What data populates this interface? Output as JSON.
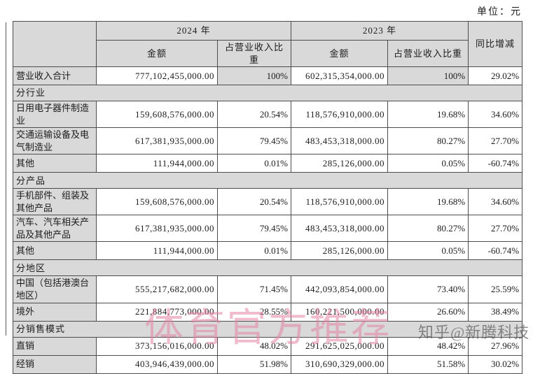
{
  "page": {
    "unit_label": "单位：元"
  },
  "watermarks": {
    "center": "体育官方推荐",
    "corner": "知乎@新腾科技"
  },
  "colors": {
    "cell_shade": "#d9d9d9",
    "border": "#4d4d4d",
    "watermark_pink": "#e284a4",
    "watermark_gray": "#4b4b4b"
  },
  "table": {
    "header": {
      "year_2024": "2024 年",
      "year_2023": "2023 年",
      "amount": "金额",
      "pct_of_revenue": "占营业收入比重",
      "yoy_change": "同比增减"
    },
    "rows": [
      {
        "type": "data",
        "label": "营业收入合计",
        "a24": "777,102,455,000.00",
        "p24": "100%",
        "a23": "602,315,354,000.00",
        "p23": "100%",
        "yoy": "29.02%",
        "shaded_pct": true
      },
      {
        "type": "section",
        "label": "分行业"
      },
      {
        "type": "data",
        "label": "日用电子器件制造业",
        "a24": "159,608,576,000.00",
        "p24": "20.54%",
        "a23": "118,576,910,000.00",
        "p23": "19.68%",
        "yoy": "34.60%"
      },
      {
        "type": "data",
        "label": "交通运输设备及电气制造业",
        "a24": "617,381,935,000.00",
        "p24": "79.45%",
        "a23": "483,453,318,000.00",
        "p23": "80.27%",
        "yoy": "27.70%"
      },
      {
        "type": "data",
        "label": "其他",
        "a24": "111,944,000.00",
        "p24": "0.01%",
        "a23": "285,126,000.00",
        "p23": "0.05%",
        "yoy": "-60.74%"
      },
      {
        "type": "section",
        "label": "分产品"
      },
      {
        "type": "data",
        "label": "手机部件、组装及其他产品",
        "a24": "159,608,576,000.00",
        "p24": "20.54%",
        "a23": "118,576,910,000.00",
        "p23": "19.68%",
        "yoy": "34.60%"
      },
      {
        "type": "data",
        "label": "汽车、汽车相关产品及其他产品",
        "a24": "617,381,935,000.00",
        "p24": "79.45%",
        "a23": "483,453,318,000.00",
        "p23": "80.27%",
        "yoy": "27.70%"
      },
      {
        "type": "data",
        "label": "其他",
        "a24": "111,944,000.00",
        "p24": "0.01%",
        "a23": "285,126,000.00",
        "p23": "0.05%",
        "yoy": "-60.74%"
      },
      {
        "type": "section",
        "label": "分地区"
      },
      {
        "type": "data",
        "label": "中国（包括港澳台地区）",
        "a24": "555,217,682,000.00",
        "p24": "71.45%",
        "a23": "442,093,854,000.00",
        "p23": "73.40%",
        "yoy": "25.59%"
      },
      {
        "type": "data",
        "label": "境外",
        "a24": "221,884,773,000.00",
        "p24": "28.55%",
        "a23": "160,221,500,000.00",
        "p23": "26.60%",
        "yoy": "38.49%"
      },
      {
        "type": "section",
        "label": "分销售模式"
      },
      {
        "type": "data",
        "label": "直销",
        "a24": "373,156,016,000.00",
        "p24": "48.02%",
        "a23": "291,625,025,000.00",
        "p23": "48.42%",
        "yoy": "27.96%"
      },
      {
        "type": "data",
        "label": "经销",
        "a24": "403,946,439,000.00",
        "p24": "51.98%",
        "a23": "310,690,329,000.00",
        "p23": "51.58%",
        "yoy": "30.02%"
      }
    ]
  }
}
